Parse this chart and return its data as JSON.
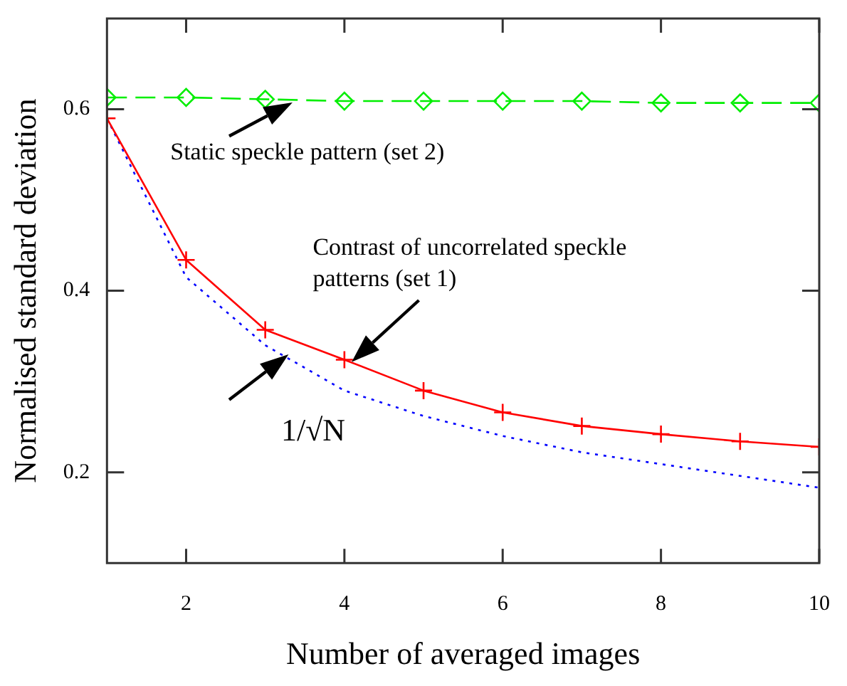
{
  "chart_data": {
    "type": "line",
    "xlabel": "Number of averaged images",
    "ylabel": "Normalised standard deviation",
    "x": [
      1,
      2,
      3,
      4,
      5,
      6,
      7,
      8,
      9,
      10
    ],
    "series": [
      {
        "color": "#00ee00",
        "marker": "diamond",
        "line_style": "dashed",
        "values": [
          0.613,
          0.613,
          0.611,
          0.609,
          0.609,
          0.609,
          0.609,
          0.607,
          0.607,
          0.607
        ]
      },
      {
        "color": "#ff0000",
        "marker": "cross",
        "line_style": "solid",
        "values": [
          0.59,
          0.434,
          0.357,
          0.324,
          0.29,
          0.266,
          0.251,
          0.242,
          0.234,
          0.228
        ]
      },
      {
        "color": "#0000ff",
        "marker": "none",
        "line_style": "dotted",
        "values": [
          0.59,
          0.415,
          0.34,
          0.29,
          0.262,
          0.24,
          0.222,
          0.209,
          0.196,
          0.183
        ]
      }
    ],
    "xlim": [
      1,
      10
    ],
    "xticks": [
      2,
      4,
      6,
      8,
      10
    ],
    "ylim": [
      0.1,
      0.7
    ],
    "yticks": [
      0.2,
      0.4,
      0.6
    ],
    "grid": false,
    "legend": false,
    "annotations": [
      {
        "text": "Static speckle pattern (set 2)",
        "x": 3.35,
        "y": 0.607
      },
      {
        "text": "Contrast of uncorrelated speckle patterns (set 1)",
        "x": 4.1,
        "y": 0.322
      },
      {
        "text": "1/√N",
        "x": 3.3,
        "y": 0.33
      }
    ]
  }
}
